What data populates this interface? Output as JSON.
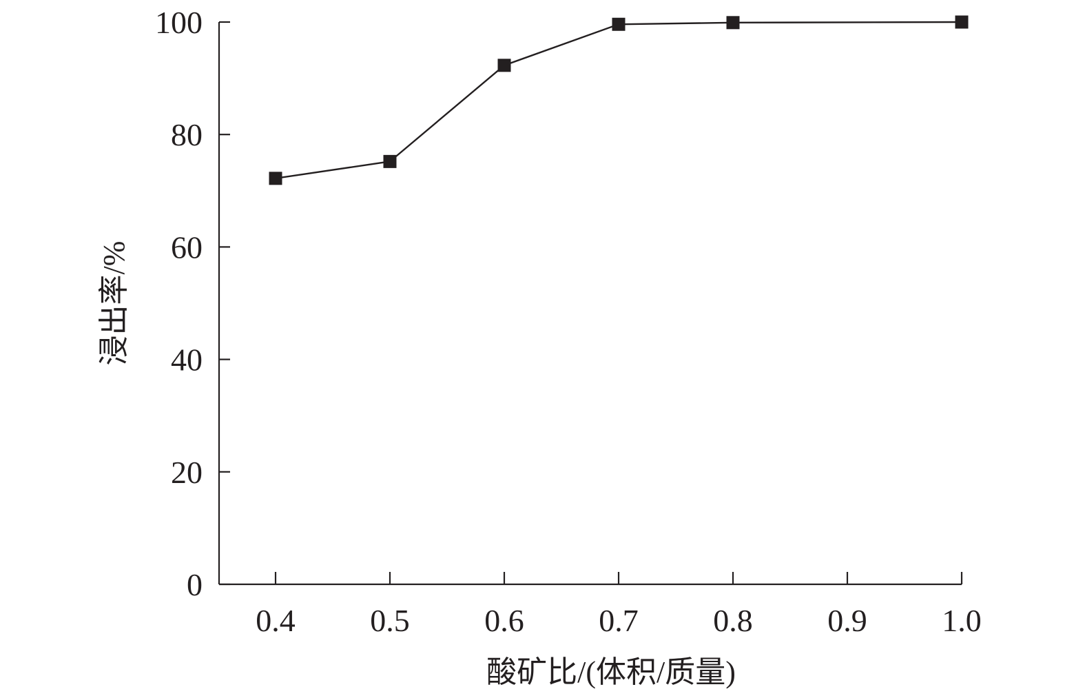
{
  "chart_data": {
    "type": "line",
    "title": "",
    "xlabel": "酸矿比/(体积/质量)",
    "ylabel": "浸出率/%",
    "x_ticks": [
      "0.4",
      "0.5",
      "0.6",
      "0.7",
      "0.8",
      "0.9",
      "1.0"
    ],
    "y_ticks": [
      "0",
      "20",
      "40",
      "60",
      "80",
      "100"
    ],
    "ylim": [
      0,
      100
    ],
    "grid": false,
    "legend": "none",
    "marker": "square",
    "colors": {
      "line": "#231f20",
      "marker": "#231f20",
      "axis": "#231f20"
    },
    "series": [
      {
        "x": [
          "0.4",
          "0.5",
          "0.6",
          "0.7",
          "0.8",
          "1.0"
        ],
        "values": [
          72.2,
          75.2,
          92.3,
          99.6,
          99.9,
          100
        ]
      }
    ]
  }
}
